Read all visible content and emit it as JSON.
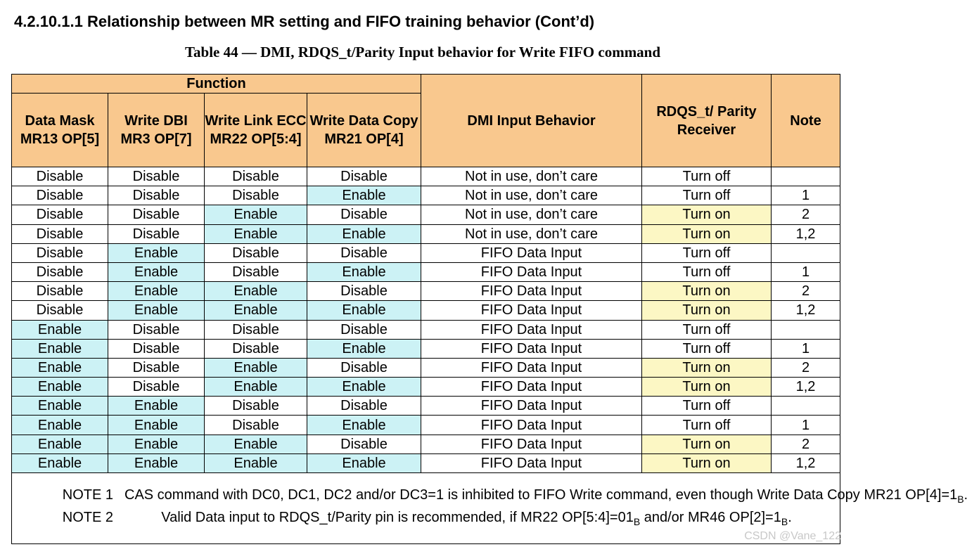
{
  "heading": "4.2.10.1.1  Relationship between MR setting and FIFO training behavior (Cont’d)",
  "caption": "Table 44 — DMI, RDQS_t/Parity Input behavior for Write FIFO command",
  "table": {
    "group_header": "Function",
    "headers": {
      "data_mask": "Data Mask MR13 OP[5]",
      "write_dbi": "Write DBI MR3 OP[7]",
      "write_link_ecc": "Write Link ECC MR22 OP[5:4]",
      "write_data_copy": "Write Data Copy MR21 OP[4]",
      "dmi_input_behavior": "DMI Input Behavior",
      "rdqs_receiver": "RDQS_t/ Parity Receiver",
      "note": "Note"
    },
    "rows": [
      [
        "Disable",
        "Disable",
        "Disable",
        "Disable",
        "Not in use, don’t care",
        "Turn off",
        ""
      ],
      [
        "Disable",
        "Disable",
        "Disable",
        "Enable",
        "Not in use, don’t care",
        "Turn off",
        "1"
      ],
      [
        "Disable",
        "Disable",
        "Enable",
        "Disable",
        "Not in use, don’t care",
        "Turn on",
        "2"
      ],
      [
        "Disable",
        "Disable",
        "Enable",
        "Enable",
        "Not in use, don’t care",
        "Turn on",
        "1,2"
      ],
      [
        "Disable",
        "Enable",
        "Disable",
        "Disable",
        "FIFO Data Input",
        "Turn off",
        ""
      ],
      [
        "Disable",
        "Enable",
        "Disable",
        "Enable",
        "FIFO Data Input",
        "Turn off",
        "1"
      ],
      [
        "Disable",
        "Enable",
        "Enable",
        "Disable",
        "FIFO Data Input",
        "Turn on",
        "2"
      ],
      [
        "Disable",
        "Enable",
        "Enable",
        "Enable",
        "FIFO Data Input",
        "Turn on",
        "1,2"
      ],
      [
        "Enable",
        "Disable",
        "Disable",
        "Disable",
        "FIFO Data Input",
        "Turn off",
        ""
      ],
      [
        "Enable",
        "Disable",
        "Disable",
        "Enable",
        "FIFO Data Input",
        "Turn off",
        "1"
      ],
      [
        "Enable",
        "Disable",
        "Enable",
        "Disable",
        "FIFO Data Input",
        "Turn on",
        "2"
      ],
      [
        "Enable",
        "Disable",
        "Enable",
        "Enable",
        "FIFO Data Input",
        "Turn on",
        "1,2"
      ],
      [
        "Enable",
        "Enable",
        "Disable",
        "Disable",
        "FIFO Data Input",
        "Turn off",
        ""
      ],
      [
        "Enable",
        "Enable",
        "Disable",
        "Enable",
        "FIFO Data Input",
        "Turn off",
        "1"
      ],
      [
        "Enable",
        "Enable",
        "Enable",
        "Disable",
        "FIFO Data Input",
        "Turn on",
        "2"
      ],
      [
        "Enable",
        "Enable",
        "Enable",
        "Enable",
        "FIFO Data Input",
        "Turn on",
        "1,2"
      ]
    ],
    "notes": [
      {
        "label": "NOTE 1",
        "text": "CAS command with DC0, DC1, DC2 and/or DC3=1 is inhibited to FIFO Write command, even though Write Data Copy MR21 OP[4]=1",
        "subscript": "B",
        "suffix": "."
      },
      {
        "label": "NOTE 2",
        "text_before": "Valid Data input to RDQS_t/Parity pin is recommended, if MR22 OP[5:4]=01",
        "sub1": "B",
        "text_middle": " and/or MR46 OP[2]=1",
        "sub2": "B",
        "suffix": "."
      }
    ]
  },
  "colors": {
    "header_bg": "#f9c88e",
    "enable_bg": "#ccf2f5",
    "turn_on_bg": "#fcf7c4"
  },
  "watermark": "CSDN @Vane_122"
}
